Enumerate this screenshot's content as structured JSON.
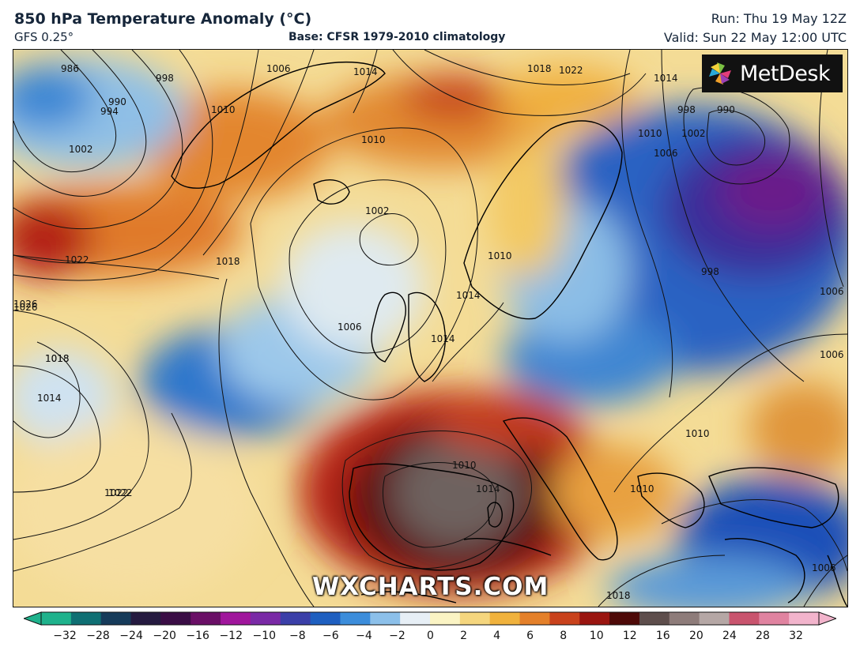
{
  "header": {
    "title": "850 hPa Temperature Anomaly (°C)",
    "model": "GFS 0.25°",
    "base": "Base: CFSR 1979-2010 climatology",
    "run": "Run: Thu 19 May 12Z",
    "valid": "Valid: Sun 22 May 12:00 UTC"
  },
  "brand": {
    "name": "MetDesk",
    "icon": "metdesk-pinwheel-logo"
  },
  "watermark": "WXCHARTS.COM",
  "isobars": [
    "986",
    "990",
    "994",
    "998",
    "1002",
    "1006",
    "1010",
    "1014",
    "1018",
    "1022",
    "1026",
    "1002",
    "1006",
    "1010",
    "1014",
    "1018",
    "1022",
    "998",
    "990",
    "1002",
    "1006",
    "1010",
    "1014",
    "1018",
    "1022",
    "1026",
    "1018",
    "1014",
    "1022",
    "1006",
    "1010",
    "1014",
    "1010",
    "1010",
    "1018",
    "1006",
    "998",
    "1006",
    "1010",
    "1014"
  ],
  "colorbar": {
    "ticks": [
      "−32",
      "−28",
      "−24",
      "−20",
      "−16",
      "−12",
      "−10",
      "−8",
      "−6",
      "−4",
      "−2",
      "0",
      "2",
      "4",
      "6",
      "8",
      "10",
      "12",
      "16",
      "20",
      "24",
      "28",
      "32"
    ],
    "colors": [
      "#1fb28c",
      "#0f6f73",
      "#163b5a",
      "#251a40",
      "#3a0d45",
      "#6a0f66",
      "#a0169c",
      "#7a2aa6",
      "#3b3fa8",
      "#1e5fc0",
      "#3c8ddb",
      "#8cc0ea",
      "#e7eff6",
      "#fbf4c4",
      "#f5d67e",
      "#f0b23d",
      "#e4802a",
      "#c9421c",
      "#9a1510",
      "#4e0a08",
      "#5e4e4c",
      "#8e7c7a",
      "#b5a7a5",
      "#c9546e",
      "#e083a0",
      "#f2b4cc"
    ]
  }
}
